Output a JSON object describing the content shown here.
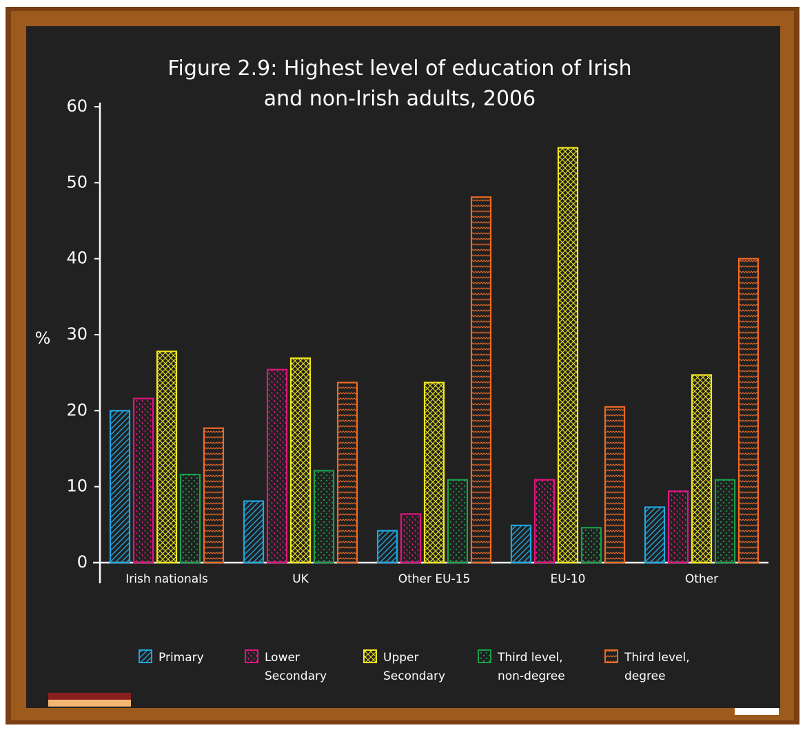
{
  "chart_data": {
    "type": "bar",
    "title": "Figure 2.9: Highest level of education of Irish and non-Irish adults, 2006",
    "y_label": "%",
    "categories": [
      "Irish nationals",
      "UK",
      "Other EU-15",
      "EU-10",
      "Other"
    ],
    "series": [
      {
        "name": "Primary",
        "color": "#1ea6e0",
        "values": [
          20.0,
          8.1,
          4.2,
          4.9,
          7.3
        ]
      },
      {
        "name": "Lower Secondary",
        "color": "#e0157f",
        "values": [
          21.6,
          25.4,
          6.4,
          10.9,
          9.4
        ]
      },
      {
        "name": "Upper Secondary",
        "color": "#f2e81c",
        "values": [
          27.8,
          26.9,
          23.7,
          54.6,
          24.7
        ]
      },
      {
        "name": "Third level, non-degree",
        "color": "#1aa04a",
        "values": [
          11.6,
          12.1,
          10.9,
          4.6,
          10.9
        ]
      },
      {
        "name": "Third level, degree",
        "color": "#f06a25",
        "values": [
          17.7,
          23.7,
          48.1,
          20.5,
          40.0
        ]
      }
    ],
    "ylim": [
      0,
      60
    ],
    "yticks": [
      0,
      10,
      20,
      30,
      40,
      50,
      60
    ],
    "grid": false
  }
}
